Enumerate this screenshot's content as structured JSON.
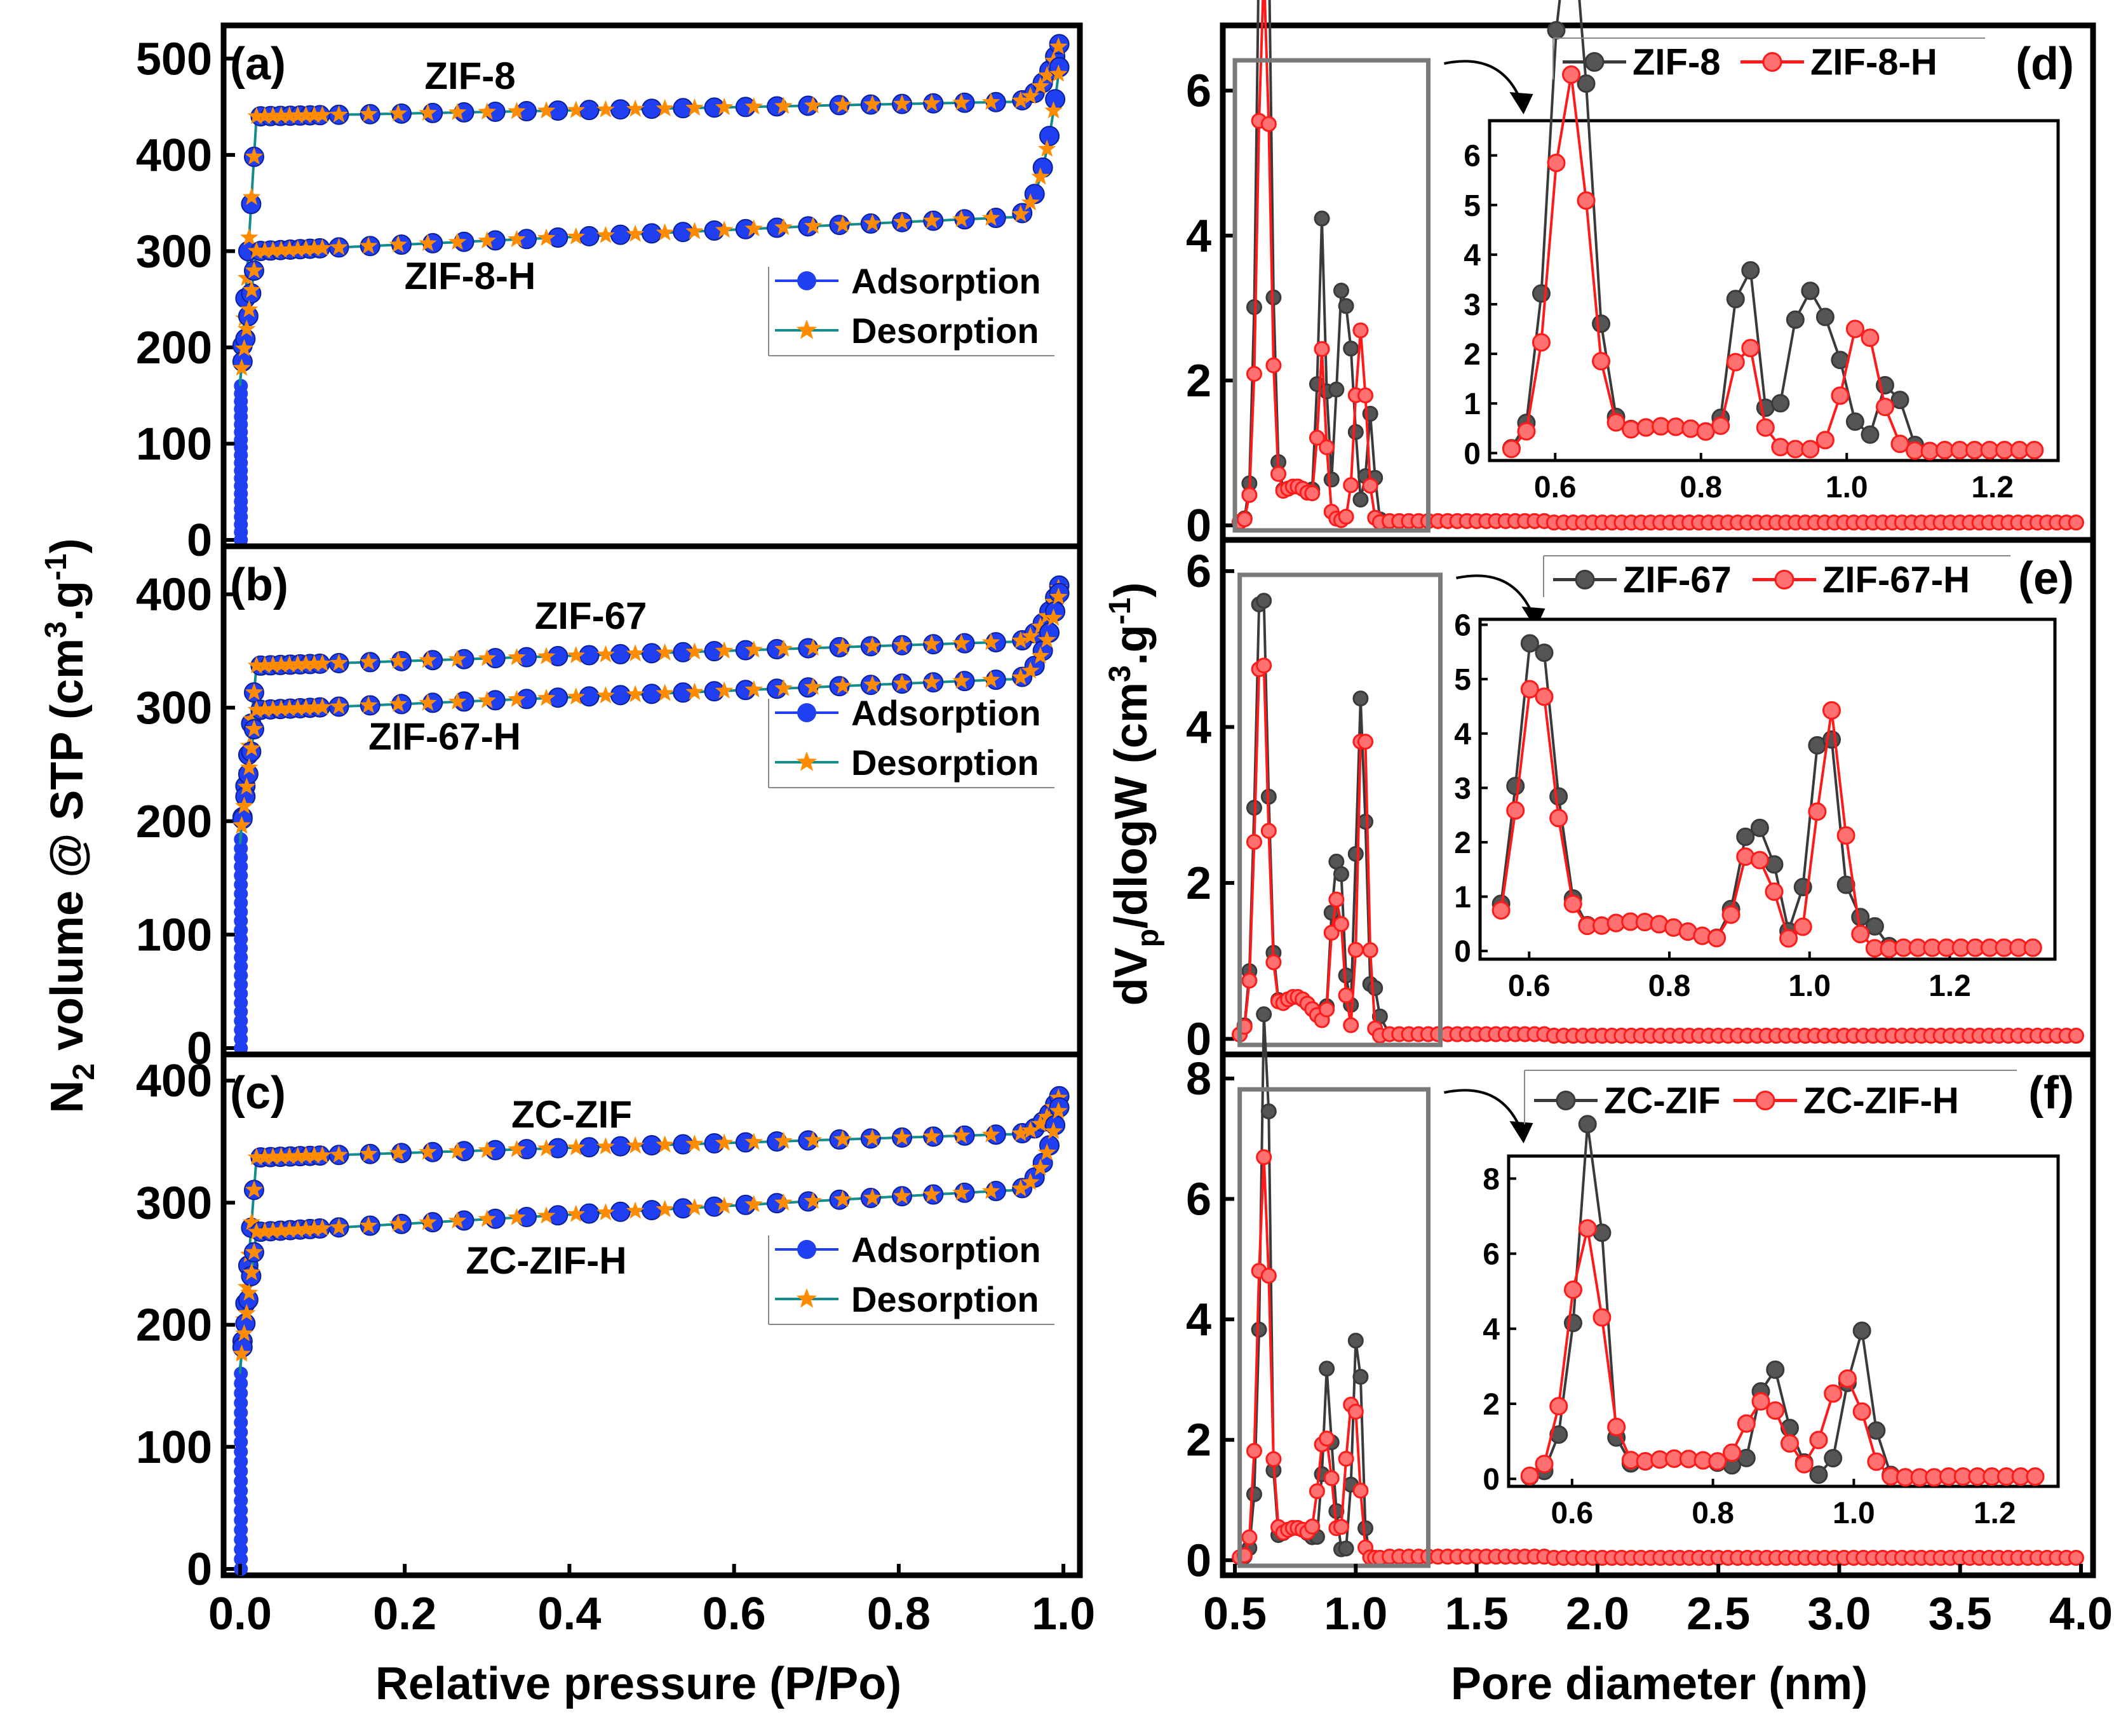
{
  "figure": {
    "left_xlabel": "Relative pressure (P/Po)",
    "right_xlabel": "Pore diameter (nm)",
    "left_ylabel": {
      "prefix": "N",
      "sub": "2",
      "mid": " volume @ STP (cm",
      "sup1": "3",
      "mid2": ".g",
      "sup2": "-1",
      "end": ")"
    },
    "right_ylabel": {
      "prefix": "dV",
      "sub": "p",
      "mid": "/dlogW (cm",
      "sup1": "3",
      "mid2": ".g",
      "sup2": "-1",
      "end": ")"
    }
  },
  "colors": {
    "adsorption": "#1f3ff0",
    "adsorption_line": "#1f3ff0",
    "desorption": "#ff8c00",
    "desorption_line": "#138c8c",
    "black_series": "#3a3a3a",
    "red_series": "#ff1a1a",
    "box": "#7a7a7a"
  },
  "chart_data": [
    {
      "id": "a",
      "panel_label": "(a)",
      "type": "line",
      "xlabel": "",
      "ylabel": "",
      "xlim": [
        -0.02,
        1.02
      ],
      "ylim": [
        0,
        520
      ],
      "yticks": [
        0,
        100,
        200,
        300,
        400,
        500
      ],
      "legend": {
        "position": "right",
        "entries": [
          "Adsorption",
          "Desorption"
        ]
      },
      "annotations": [
        "ZIF-8",
        "ZIF-8-H"
      ],
      "samples": [
        {
          "name": "ZIF-8",
          "plateau": [
            440,
            455
          ],
          "rise_start": 160,
          "end_top": 530
        },
        {
          "name": "ZIF-8-H",
          "plateau": [
            300,
            335
          ],
          "rise_start": 165,
          "end_top": 530
        }
      ]
    },
    {
      "id": "b",
      "panel_label": "(b)",
      "type": "line",
      "xlim": [
        -0.02,
        1.02
      ],
      "ylim": [
        0,
        430
      ],
      "yticks": [
        0,
        100,
        200,
        300,
        400
      ],
      "legend": {
        "position": "right",
        "entries": [
          "Adsorption",
          "Desorption"
        ]
      },
      "annotations": [
        "ZIF-67",
        "ZIF-67-H"
      ],
      "samples": [
        {
          "name": "ZIF-67",
          "plateau": [
            337,
            358
          ],
          "rise_start": 180,
          "end_top": 420
        },
        {
          "name": "ZIF-67-H",
          "plateau": [
            298,
            325
          ],
          "rise_start": 185,
          "end_top": 420
        }
      ]
    },
    {
      "id": "c",
      "panel_label": "(c)",
      "type": "line",
      "xlim": [
        -0.02,
        1.02
      ],
      "ylim": [
        0,
        410
      ],
      "yticks": [
        0,
        100,
        200,
        300,
        400
      ],
      "legend": {
        "position": "right",
        "entries": [
          "Adsorption",
          "Desorption"
        ]
      },
      "annotations": [
        "ZC-ZIF",
        "ZC-ZIF-H"
      ],
      "samples": [
        {
          "name": "ZC-ZIF",
          "plateau": [
            337,
            356
          ],
          "rise_start": 160,
          "end_top": 395
        },
        {
          "name": "ZC-ZIF-H",
          "plateau": [
            276,
            310
          ],
          "rise_start": 165,
          "end_top": 395
        }
      ]
    },
    {
      "id": "d",
      "panel_label": "(d)",
      "type": "line",
      "xlim": [
        0.45,
        4.05
      ],
      "ylim": [
        -0.2,
        6.9
      ],
      "yticks": [
        0,
        2,
        4,
        6
      ],
      "legend": {
        "position": "top",
        "entries": [
          "ZIF-8",
          "ZIF-8-H"
        ]
      },
      "inset": {
        "xlim": [
          0.51,
          1.29
        ],
        "ylim": [
          -0.15,
          6.7
        ],
        "xticks": [
          0.6,
          0.8,
          1.0,
          1.2
        ],
        "yticks": [
          0,
          1,
          2,
          3,
          4,
          5,
          6
        ]
      },
      "box_x": [
        0.5,
        1.3
      ],
      "peaks_black": [
        [
          0.61,
          6.25,
          0.022
        ],
        [
          0.63,
          6.0,
          0.022
        ],
        [
          0.86,
          4.0,
          0.015
        ],
        [
          0.94,
          2.9,
          0.02
        ],
        [
          0.98,
          2.0,
          0.02
        ],
        [
          1.06,
          1.5,
          0.015
        ]
      ],
      "peaks_red": [
        [
          0.61,
          4.3,
          0.022
        ],
        [
          0.63,
          4.0,
          0.022
        ],
        [
          0.86,
          2.2,
          0.015
        ],
        [
          1.02,
          2.65,
          0.022
        ]
      ]
    },
    {
      "id": "e",
      "panel_label": "(e)",
      "type": "line",
      "xlim": [
        0.45,
        4.05
      ],
      "ylim": [
        -0.2,
        6.4
      ],
      "yticks": [
        0,
        2,
        4,
        6
      ],
      "legend": {
        "position": "top",
        "entries": [
          "ZIF-67",
          "ZIF-67-H"
        ]
      },
      "inset": {
        "xlim": [
          0.53,
          1.35
        ],
        "ylim": [
          -0.15,
          6.1
        ],
        "xticks": [
          0.6,
          0.8,
          1.0,
          1.2
        ],
        "yticks": [
          0,
          1,
          2,
          3,
          4,
          5,
          6
        ]
      },
      "box_x": [
        0.52,
        1.35
      ],
      "peaks_black": [
        [
          0.61,
          5.9,
          0.025
        ],
        [
          0.91,
          1.8,
          0.015
        ],
        [
          0.94,
          1.8,
          0.015
        ],
        [
          1.01,
          2.4,
          0.015
        ],
        [
          1.03,
          3.0,
          0.015
        ],
        [
          1.08,
          0.6,
          0.015
        ]
      ],
      "peaks_red": [
        [
          0.61,
          5.0,
          0.025
        ],
        [
          0.91,
          1.5,
          0.015
        ],
        [
          0.94,
          1.2,
          0.015
        ],
        [
          1.03,
          4.4,
          0.018
        ]
      ]
    },
    {
      "id": "f",
      "panel_label": "(f)",
      "type": "line",
      "xlim": [
        0.45,
        4.05
      ],
      "ylim": [
        -0.25,
        8.4
      ],
      "yticks": [
        0,
        2,
        4,
        6,
        8
      ],
      "legend": {
        "position": "top",
        "entries": [
          "ZC-ZIF",
          "ZC-ZIF-H"
        ]
      },
      "inset": {
        "xlim": [
          0.51,
          1.29
        ],
        "ylim": [
          -0.2,
          8.6
        ],
        "xticks": [
          0.6,
          0.8,
          1.0,
          1.2
        ],
        "yticks": [
          0,
          2,
          4,
          6,
          8
        ]
      },
      "box_x": [
        0.52,
        1.3
      ],
      "peaks_black": [
        [
          0.61,
          3.0,
          0.02
        ],
        [
          0.63,
          7.8,
          0.015
        ],
        [
          0.88,
          2.9,
          0.015
        ],
        [
          0.91,
          0.8,
          0.015
        ],
        [
          1.01,
          3.6,
          0.015
        ],
        [
          0.99,
          0.9,
          0.015
        ]
      ],
      "peaks_red": [
        [
          0.61,
          4.0,
          0.022
        ],
        [
          0.63,
          3.3,
          0.02
        ],
        [
          0.86,
          1.3,
          0.02
        ],
        [
          0.89,
          1.2,
          0.02
        ],
        [
          0.97,
          1.7,
          0.018
        ],
        [
          1.0,
          2.0,
          0.018
        ]
      ]
    }
  ],
  "x_axis_left": {
    "ticks": [
      0.0,
      0.2,
      0.4,
      0.6,
      0.8,
      1.0
    ],
    "tick_labels": [
      "0.0",
      "0.2",
      "0.4",
      "0.6",
      "0.8",
      "1.0"
    ]
  },
  "x_axis_right": {
    "ticks": [
      0.5,
      1.0,
      1.5,
      2.0,
      2.5,
      3.0,
      3.5,
      4.0
    ],
    "tick_labels": [
      "0.5",
      "1.0",
      "1.5",
      "2.0",
      "2.5",
      "3.0",
      "3.5",
      "4.0"
    ]
  }
}
